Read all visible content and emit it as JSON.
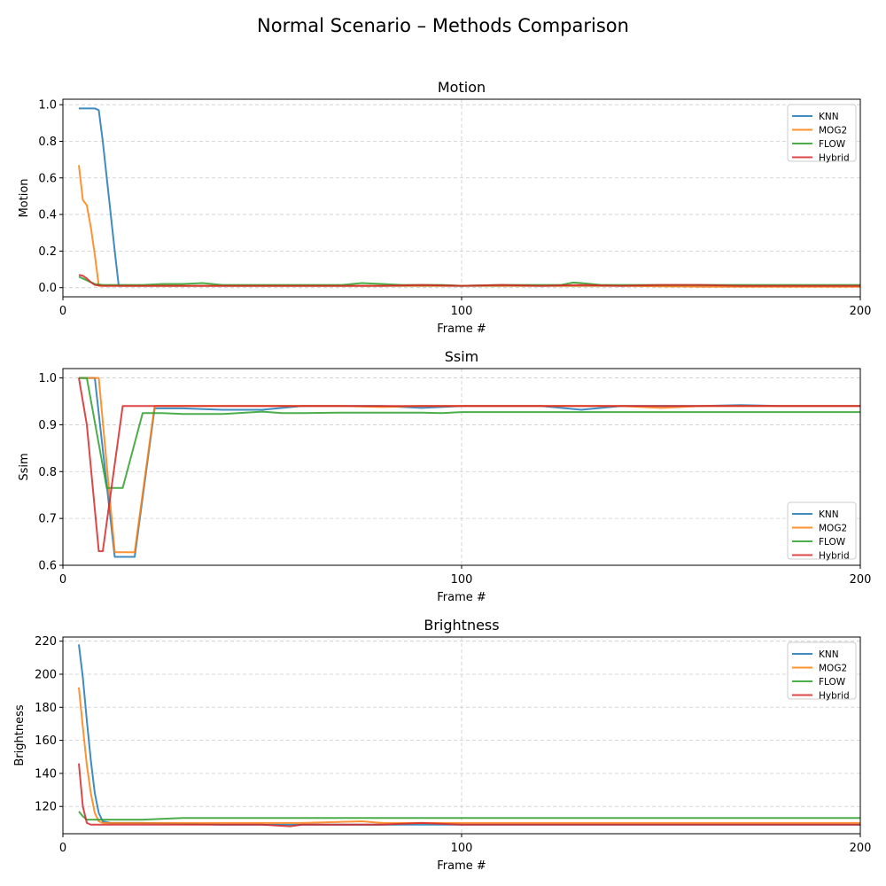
{
  "figure": {
    "title": "Normal Scenario – Methods Comparison"
  },
  "colors": {
    "KNN": "#1f77b4",
    "MOG2": "#ff7f0e",
    "FLOW": "#2ca02c",
    "Hybrid": "#d62728",
    "grid": "#cccccc"
  },
  "chart_data": [
    {
      "type": "line",
      "title": "Motion",
      "xlabel": "Frame #",
      "ylabel": "Motion",
      "xlim": [
        0,
        200
      ],
      "ylim": [
        -0.05,
        1.03
      ],
      "xticks": [
        0,
        100,
        200
      ],
      "yticks": [
        0.0,
        0.2,
        0.4,
        0.6,
        0.8,
        1.0
      ],
      "ytick_labels": [
        "0.0",
        "0.2",
        "0.4",
        "0.6",
        "0.8",
        "1.0"
      ],
      "grid": true,
      "legend": "top-right",
      "series": [
        {
          "name": "KNN",
          "x": [
            4,
            5,
            6,
            7,
            8,
            9,
            10,
            11,
            12,
            13,
            14,
            20,
            30,
            40,
            50,
            60,
            70,
            80,
            90,
            100,
            120,
            140,
            160,
            180,
            200
          ],
          "y": [
            0.98,
            0.98,
            0.98,
            0.98,
            0.98,
            0.97,
            0.8,
            0.6,
            0.4,
            0.2,
            0.01,
            0.01,
            0.01,
            0.01,
            0.01,
            0.01,
            0.01,
            0.01,
            0.01,
            0.01,
            0.01,
            0.01,
            0.01,
            0.01,
            0.01
          ]
        },
        {
          "name": "MOG2",
          "x": [
            4,
            5,
            6,
            7,
            8,
            9,
            10,
            12,
            20,
            30,
            40,
            50,
            60,
            70,
            80,
            90,
            100,
            120,
            140,
            160,
            180,
            200
          ],
          "y": [
            0.67,
            0.48,
            0.45,
            0.33,
            0.18,
            0.01,
            0.01,
            0.01,
            0.01,
            0.01,
            0.01,
            0.01,
            0.01,
            0.01,
            0.01,
            0.01,
            0.01,
            0.01,
            0.01,
            0.005,
            0.005,
            0.005
          ]
        },
        {
          "name": "FLOW",
          "x": [
            4,
            6,
            8,
            10,
            15,
            20,
            25,
            30,
            35,
            40,
            45,
            50,
            55,
            60,
            65,
            70,
            75,
            80,
            85,
            90,
            95,
            100,
            110,
            120,
            125,
            128,
            130,
            135,
            140,
            150,
            160,
            170,
            180,
            190,
            200
          ],
          "y": [
            0.06,
            0.04,
            0.02,
            0.015,
            0.015,
            0.015,
            0.02,
            0.02,
            0.025,
            0.015,
            0.015,
            0.015,
            0.015,
            0.015,
            0.015,
            0.015,
            0.025,
            0.02,
            0.015,
            0.015,
            0.015,
            0.01,
            0.015,
            0.015,
            0.015,
            0.028,
            0.025,
            0.015,
            0.015,
            0.015,
            0.015,
            0.015,
            0.015,
            0.015,
            0.015
          ]
        },
        {
          "name": "Hybrid",
          "x": [
            4,
            5,
            6,
            7,
            8,
            10,
            15,
            20,
            30,
            40,
            50,
            60,
            70,
            80,
            90,
            100,
            110,
            120,
            130,
            140,
            150,
            160,
            170,
            180,
            190,
            200
          ],
          "y": [
            0.07,
            0.065,
            0.05,
            0.03,
            0.015,
            0.01,
            0.01,
            0.01,
            0.01,
            0.01,
            0.01,
            0.01,
            0.01,
            0.01,
            0.015,
            0.01,
            0.015,
            0.01,
            0.015,
            0.01,
            0.015,
            0.015,
            0.01,
            0.01,
            0.01,
            0.01
          ]
        }
      ]
    },
    {
      "type": "line",
      "title": "Ssim",
      "xlabel": "Frame #",
      "ylabel": "Ssim",
      "xlim": [
        0,
        200
      ],
      "ylim": [
        0.6,
        1.02
      ],
      "xticks": [
        0,
        100,
        200
      ],
      "yticks": [
        0.6,
        0.7,
        0.8,
        0.9,
        1.0
      ],
      "ytick_labels": [
        "0.6",
        "0.7",
        "0.8",
        "0.9",
        "1.0"
      ],
      "grid": true,
      "legend": "bottom-right",
      "series": [
        {
          "name": "KNN",
          "x": [
            4,
            6,
            8,
            13,
            18,
            23,
            30,
            40,
            50,
            60,
            70,
            80,
            90,
            100,
            110,
            120,
            130,
            140,
            160,
            170,
            180,
            200
          ],
          "y": [
            1.0,
            1.0,
            1.0,
            0.618,
            0.618,
            0.935,
            0.935,
            0.932,
            0.932,
            0.94,
            0.94,
            0.94,
            0.936,
            0.94,
            0.94,
            0.94,
            0.932,
            0.94,
            0.94,
            0.942,
            0.94,
            0.94
          ]
        },
        {
          "name": "MOG2",
          "x": [
            4,
            6,
            8,
            9,
            13,
            18,
            23,
            30,
            40,
            50,
            60,
            70,
            80,
            90,
            100,
            120,
            140,
            150,
            160,
            180,
            200
          ],
          "y": [
            1.0,
            1.0,
            1.0,
            1.0,
            0.628,
            0.628,
            0.94,
            0.94,
            0.94,
            0.94,
            0.94,
            0.94,
            0.938,
            0.94,
            0.94,
            0.94,
            0.94,
            0.936,
            0.94,
            0.94,
            0.94
          ]
        },
        {
          "name": "FLOW",
          "x": [
            4,
            6,
            11,
            15,
            20,
            25,
            30,
            40,
            50,
            55,
            60,
            70,
            80,
            90,
            95,
            100,
            120,
            140,
            160,
            180,
            200
          ],
          "y": [
            1.0,
            1.0,
            0.765,
            0.765,
            0.925,
            0.925,
            0.923,
            0.923,
            0.928,
            0.925,
            0.925,
            0.926,
            0.926,
            0.926,
            0.925,
            0.927,
            0.927,
            0.927,
            0.927,
            0.927,
            0.927
          ]
        },
        {
          "name": "Hybrid",
          "x": [
            4,
            6,
            9,
            10,
            15,
            20,
            30,
            40,
            50,
            60,
            70,
            80,
            90,
            100,
            120,
            140,
            160,
            180,
            190,
            200
          ],
          "y": [
            1.0,
            0.9,
            0.63,
            0.63,
            0.94,
            0.94,
            0.94,
            0.94,
            0.94,
            0.94,
            0.94,
            0.94,
            0.94,
            0.94,
            0.94,
            0.94,
            0.94,
            0.94,
            0.94,
            0.94
          ]
        }
      ]
    },
    {
      "type": "line",
      "title": "Brightness",
      "xlabel": "Frame #",
      "ylabel": "Brightness",
      "xlim": [
        0,
        200
      ],
      "ylim": [
        103.5,
        222.5
      ],
      "xticks": [
        0,
        100,
        200
      ],
      "yticks": [
        120,
        140,
        160,
        180,
        200,
        220
      ],
      "ytick_labels": [
        "120",
        "140",
        "160",
        "180",
        "200",
        "220"
      ],
      "grid": true,
      "legend": "top-right",
      "series": [
        {
          "name": "KNN",
          "x": [
            4,
            5,
            6,
            7,
            8,
            9,
            10,
            12,
            20,
            40,
            60,
            80,
            100,
            120,
            140,
            160,
            180,
            200
          ],
          "y": [
            218,
            198,
            172,
            148,
            128,
            116,
            111,
            110,
            110,
            109,
            109,
            109,
            109,
            109,
            109,
            109,
            109,
            109
          ]
        },
        {
          "name": "MOG2",
          "x": [
            4,
            5,
            6,
            7,
            8,
            9,
            10,
            12,
            20,
            40,
            60,
            75,
            80,
            100,
            120,
            140,
            160,
            180,
            200
          ],
          "y": [
            192,
            168,
            145,
            128,
            116,
            111,
            110,
            110,
            110,
            110,
            110,
            111,
            110,
            110,
            110,
            110,
            110,
            110,
            110
          ]
        },
        {
          "name": "FLOW",
          "x": [
            4,
            5,
            6,
            10,
            20,
            30,
            40,
            60,
            80,
            100,
            120,
            130,
            140,
            160,
            180,
            200
          ],
          "y": [
            117,
            114,
            112,
            112,
            112,
            113,
            113,
            113,
            113,
            113,
            113,
            113,
            113,
            113,
            113,
            113
          ]
        },
        {
          "name": "Hybrid",
          "x": [
            4,
            5,
            6,
            7,
            10,
            20,
            30,
            40,
            50,
            57,
            60,
            80,
            90,
            100,
            120,
            140,
            160,
            180,
            200
          ],
          "y": [
            146,
            120,
            110,
            109,
            109,
            109,
            109,
            109,
            109,
            108,
            109,
            109,
            110,
            109,
            109,
            109,
            109,
            109,
            109
          ]
        }
      ]
    }
  ]
}
